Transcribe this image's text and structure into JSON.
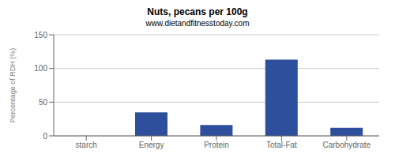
{
  "chart_data": {
    "type": "bar",
    "title": "Nuts, pecans per 100g",
    "subtitle": "www.dietandfitnesstoday.com",
    "categories": [
      "starch",
      "Energy",
      "Protein",
      "Total-Fat",
      "Carbohydrate"
    ],
    "values": [
      0,
      35,
      16,
      113,
      12
    ],
    "color": "#2e4f9b",
    "ylabel": "Percentage of RDH (%)",
    "ylim": [
      0,
      150
    ],
    "yticks": [
      0,
      50,
      100,
      150
    ],
    "grid": true
  }
}
